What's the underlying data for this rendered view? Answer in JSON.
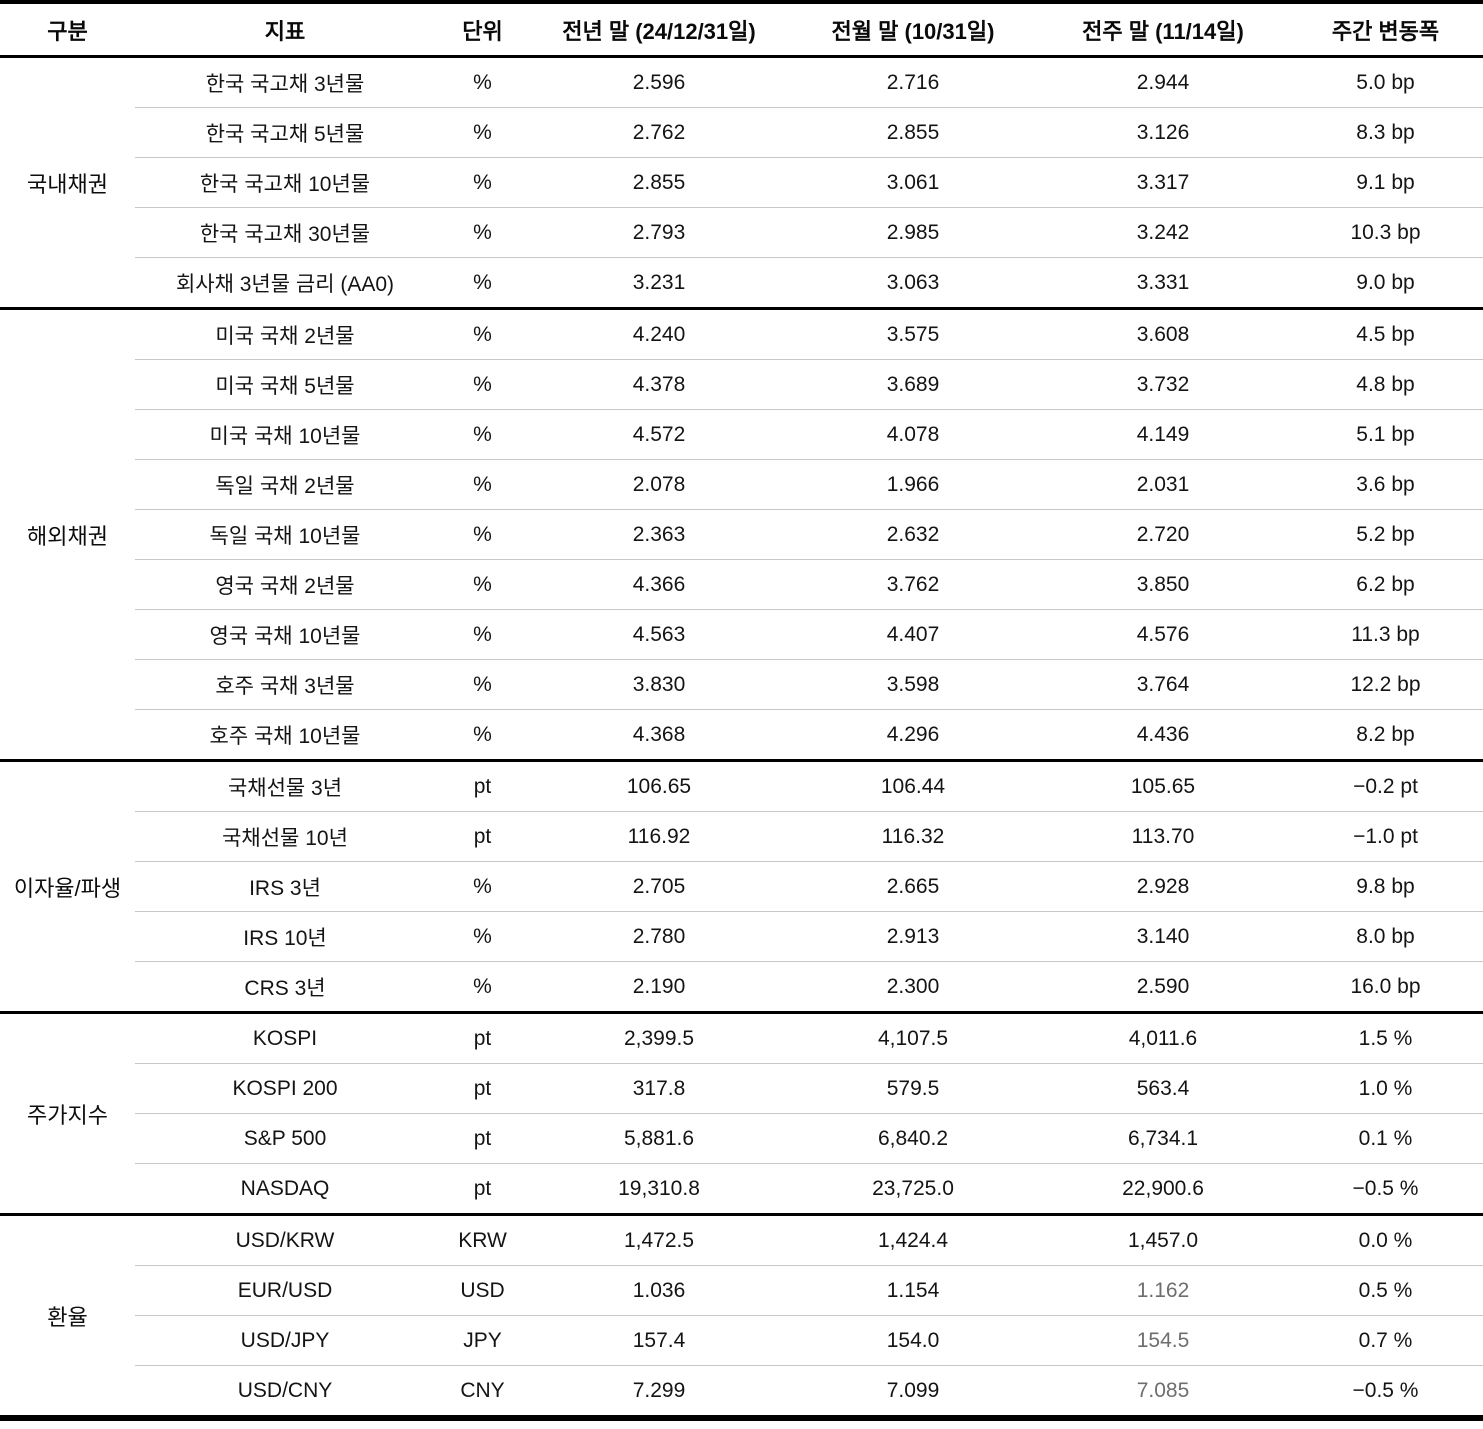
{
  "chart_data": {
    "type": "table",
    "columns": [
      "구분",
      "지표",
      "단위",
      "전년 말 (24/12/31일)",
      "전월 말 (10/31일)",
      "전주 말 (11/14일)",
      "주간 변동폭"
    ],
    "sections": [
      {
        "category": "국내채권",
        "rows": [
          {
            "indicator": "한국 국고채 3년물",
            "unit": "%",
            "values": [
              "2.596",
              "2.716",
              "2.944"
            ],
            "change": "5.0 bp",
            "light_week": false
          },
          {
            "indicator": "한국 국고채 5년물",
            "unit": "%",
            "values": [
              "2.762",
              "2.855",
              "3.126"
            ],
            "change": "8.3 bp",
            "light_week": false
          },
          {
            "indicator": "한국 국고채 10년물",
            "unit": "%",
            "values": [
              "2.855",
              "3.061",
              "3.317"
            ],
            "change": "9.1 bp",
            "light_week": false
          },
          {
            "indicator": "한국 국고채 30년물",
            "unit": "%",
            "values": [
              "2.793",
              "2.985",
              "3.242"
            ],
            "change": "10.3 bp",
            "light_week": false
          },
          {
            "indicator": "회사채 3년물 금리 (AA0)",
            "unit": "%",
            "values": [
              "3.231",
              "3.063",
              "3.331"
            ],
            "change": "9.0 bp",
            "light_week": false
          }
        ]
      },
      {
        "category": "해외채권",
        "rows": [
          {
            "indicator": "미국 국채 2년물",
            "unit": "%",
            "values": [
              "4.240",
              "3.575",
              "3.608"
            ],
            "change": "4.5 bp",
            "light_week": false
          },
          {
            "indicator": "미국 국채 5년물",
            "unit": "%",
            "values": [
              "4.378",
              "3.689",
              "3.732"
            ],
            "change": "4.8 bp",
            "light_week": false
          },
          {
            "indicator": "미국 국채 10년물",
            "unit": "%",
            "values": [
              "4.572",
              "4.078",
              "4.149"
            ],
            "change": "5.1 bp",
            "light_week": false
          },
          {
            "indicator": "독일 국채 2년물",
            "unit": "%",
            "values": [
              "2.078",
              "1.966",
              "2.031"
            ],
            "change": "3.6 bp",
            "light_week": false
          },
          {
            "indicator": "독일 국채 10년물",
            "unit": "%",
            "values": [
              "2.363",
              "2.632",
              "2.720"
            ],
            "change": "5.2 bp",
            "light_week": false
          },
          {
            "indicator": "영국 국채 2년물",
            "unit": "%",
            "values": [
              "4.366",
              "3.762",
              "3.850"
            ],
            "change": "6.2 bp",
            "light_week": false
          },
          {
            "indicator": "영국 국채 10년물",
            "unit": "%",
            "values": [
              "4.563",
              "4.407",
              "4.576"
            ],
            "change": "11.3 bp",
            "light_week": false
          },
          {
            "indicator": "호주 국채 3년물",
            "unit": "%",
            "values": [
              "3.830",
              "3.598",
              "3.764"
            ],
            "change": "12.2 bp",
            "light_week": false
          },
          {
            "indicator": "호주 국채 10년물",
            "unit": "%",
            "values": [
              "4.368",
              "4.296",
              "4.436"
            ],
            "change": "8.2 bp",
            "light_week": false
          }
        ]
      },
      {
        "category": "이자율/파생",
        "rows": [
          {
            "indicator": "국채선물 3년",
            "unit": "pt",
            "values": [
              "106.65",
              "106.44",
              "105.65"
            ],
            "change": "−0.2 pt",
            "light_week": false
          },
          {
            "indicator": "국채선물 10년",
            "unit": "pt",
            "values": [
              "116.92",
              "116.32",
              "113.70"
            ],
            "change": "−1.0 pt",
            "light_week": false
          },
          {
            "indicator": "IRS 3년",
            "unit": "%",
            "values": [
              "2.705",
              "2.665",
              "2.928"
            ],
            "change": "9.8 bp",
            "light_week": false
          },
          {
            "indicator": "IRS 10년",
            "unit": "%",
            "values": [
              "2.780",
              "2.913",
              "3.140"
            ],
            "change": "8.0 bp",
            "light_week": false
          },
          {
            "indicator": "CRS 3년",
            "unit": "%",
            "values": [
              "2.190",
              "2.300",
              "2.590"
            ],
            "change": "16.0 bp",
            "light_week": false
          }
        ]
      },
      {
        "category": "주가지수",
        "rows": [
          {
            "indicator": "KOSPI",
            "unit": "pt",
            "values": [
              "2,399.5",
              "4,107.5",
              "4,011.6"
            ],
            "change": "1.5 %",
            "light_week": false
          },
          {
            "indicator": "KOSPI 200",
            "unit": "pt",
            "values": [
              "317.8",
              "579.5",
              "563.4"
            ],
            "change": "1.0 %",
            "light_week": false
          },
          {
            "indicator": "S&P 500",
            "unit": "pt",
            "values": [
              "5,881.6",
              "6,840.2",
              "6,734.1"
            ],
            "change": "0.1 %",
            "light_week": false
          },
          {
            "indicator": "NASDAQ",
            "unit": "pt",
            "values": [
              "19,310.8",
              "23,725.0",
              "22,900.6"
            ],
            "change": "−0.5 %",
            "light_week": false
          }
        ]
      },
      {
        "category": "환율",
        "rows": [
          {
            "indicator": "USD/KRW",
            "unit": "KRW",
            "values": [
              "1,472.5",
              "1,424.4",
              "1,457.0"
            ],
            "change": "0.0 %",
            "light_week": false
          },
          {
            "indicator": "EUR/USD",
            "unit": "USD",
            "values": [
              "1.036",
              "1.154",
              "1.162"
            ],
            "change": "0.5 %",
            "light_week": true
          },
          {
            "indicator": "USD/JPY",
            "unit": "JPY",
            "values": [
              "157.4",
              "154.0",
              "154.5"
            ],
            "change": "0.7 %",
            "light_week": true
          },
          {
            "indicator": "USD/CNY",
            "unit": "CNY",
            "values": [
              "7.299",
              "7.099",
              "7.085"
            ],
            "change": "−0.5 %",
            "light_week": true
          }
        ]
      }
    ],
    "title": "",
    "layout_hints": {
      "category_column_rowspan": true,
      "section_divider": "thick-black",
      "row_divider": "thin-gray",
      "grid": "horizontal-only"
    }
  }
}
